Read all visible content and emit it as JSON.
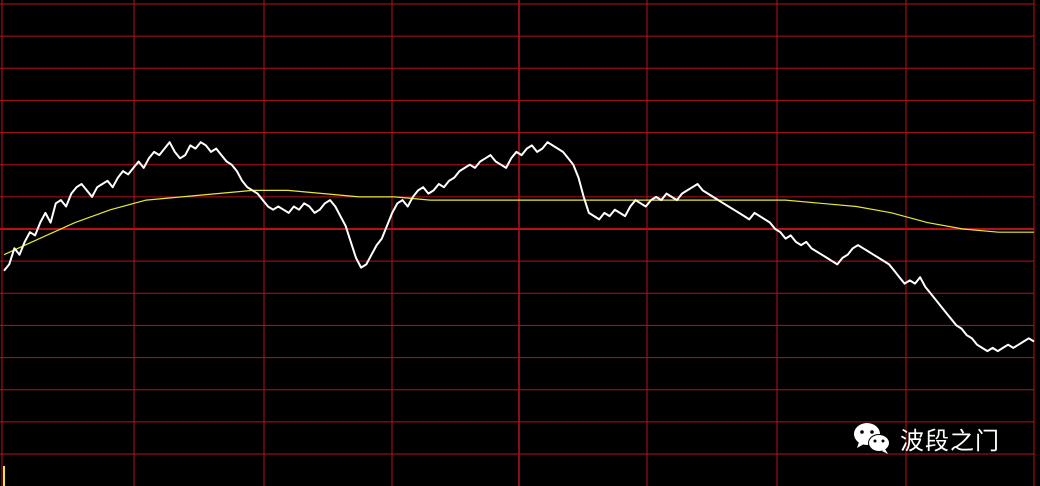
{
  "watermark": {
    "text": "波段之门",
    "icon": "wechat-icon"
  },
  "colors": {
    "background": "#000000",
    "grid": "#b8101a",
    "price_line": "#ffffff",
    "average_line": "#e8e838",
    "marker": "#e8e838"
  },
  "chart_data": {
    "type": "line",
    "title": "",
    "xlabel": "",
    "ylabel": "",
    "grid": true,
    "xlim": [
      0,
      240
    ],
    "ylim": [
      -7,
      7
    ],
    "series": [
      {
        "role": "price",
        "values": [
          -1.3,
          -1.1,
          -0.6,
          -0.8,
          -0.4,
          -0.1,
          -0.2,
          0.2,
          0.5,
          0.2,
          0.8,
          0.9,
          0.7,
          1.1,
          1.3,
          1.4,
          1.2,
          1.0,
          1.3,
          1.4,
          1.5,
          1.3,
          1.6,
          1.8,
          1.7,
          1.9,
          2.1,
          1.9,
          2.2,
          2.4,
          2.3,
          2.5,
          2.7,
          2.4,
          2.2,
          2.3,
          2.6,
          2.5,
          2.7,
          2.6,
          2.4,
          2.5,
          2.3,
          2.1,
          2.0,
          1.8,
          1.5,
          1.3,
          1.2,
          1.1,
          0.9,
          0.7,
          0.6,
          0.7,
          0.6,
          0.5,
          0.7,
          0.6,
          0.8,
          0.7,
          0.5,
          0.6,
          0.8,
          0.9,
          0.7,
          0.4,
          0.1,
          -0.4,
          -0.9,
          -1.2,
          -1.1,
          -0.8,
          -0.5,
          -0.3,
          0.1,
          0.5,
          0.8,
          0.9,
          0.7,
          1.0,
          1.2,
          1.3,
          1.1,
          1.2,
          1.4,
          1.3,
          1.5,
          1.6,
          1.8,
          1.9,
          2.0,
          1.9,
          2.1,
          2.2,
          2.3,
          2.1,
          2.0,
          1.9,
          2.2,
          2.4,
          2.3,
          2.5,
          2.6,
          2.4,
          2.5,
          2.7,
          2.6,
          2.5,
          2.4,
          2.2,
          2.0,
          1.6,
          1.0,
          0.5,
          0.4,
          0.3,
          0.5,
          0.4,
          0.6,
          0.5,
          0.4,
          0.7,
          0.9,
          0.8,
          0.7,
          0.9,
          1.0,
          0.9,
          1.1,
          1.0,
          0.9,
          1.1,
          1.2,
          1.3,
          1.4,
          1.2,
          1.1,
          1.0,
          0.9,
          0.8,
          0.7,
          0.6,
          0.5,
          0.4,
          0.3,
          0.5,
          0.4,
          0.3,
          0.2,
          0.0,
          -0.1,
          -0.3,
          -0.2,
          -0.4,
          -0.5,
          -0.4,
          -0.6,
          -0.7,
          -0.8,
          -0.9,
          -1.0,
          -1.1,
          -0.9,
          -0.8,
          -0.6,
          -0.5,
          -0.6,
          -0.7,
          -0.8,
          -0.9,
          -1.0,
          -1.1,
          -1.3,
          -1.5,
          -1.7,
          -1.6,
          -1.7,
          -1.5,
          -1.8,
          -2.0,
          -2.2,
          -2.4,
          -2.6,
          -2.8,
          -3.0,
          -3.1,
          -3.3,
          -3.4,
          -3.6,
          -3.7,
          -3.8,
          -3.7,
          -3.8,
          -3.7,
          -3.6,
          -3.7,
          -3.6,
          -3.5,
          -3.4,
          -3.5
        ]
      },
      {
        "role": "average",
        "values": [
          -0.8,
          -0.3,
          0.2,
          0.6,
          0.9,
          1.0,
          1.1,
          1.2,
          1.2,
          1.1,
          1.0,
          1.0,
          0.9,
          0.9,
          0.9,
          0.9,
          0.9,
          0.9,
          0.9,
          0.9,
          0.9,
          0.9,
          0.9,
          0.8,
          0.7,
          0.5,
          0.2,
          0.0,
          -0.1,
          -0.1
        ]
      }
    ]
  }
}
